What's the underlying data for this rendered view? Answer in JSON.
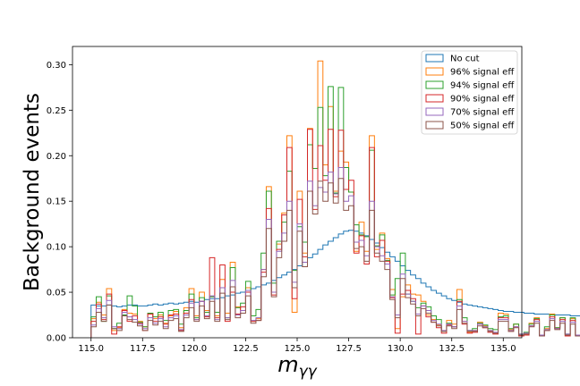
{
  "chart_data": {
    "type": "step-histogram",
    "title": "",
    "xlabel": "m_{γγ}",
    "xlabel_main": "m",
    "xlabel_sub": "γγ",
    "ylabel": "Background events",
    "xlim": [
      114.1,
      135.9
    ],
    "ylim": [
      0,
      0.32
    ],
    "bin_width": 0.25,
    "x_start": 115.0,
    "xticks": [
      115.0,
      117.5,
      120.0,
      122.5,
      125.0,
      127.5,
      130.0,
      132.5,
      135.0
    ],
    "xtick_labels": [
      "115.0",
      "117.5",
      "120.0",
      "122.5",
      "125.0",
      "127.5",
      "130.0",
      "132.5",
      "135.0"
    ],
    "yticks": [
      0.0,
      0.05,
      0.1,
      0.15,
      0.2,
      0.25,
      0.3
    ],
    "ytick_labels": [
      "0.00",
      "0.05",
      "0.10",
      "0.15",
      "0.20",
      "0.25",
      "0.30"
    ],
    "legend_position": "top-right",
    "series": [
      {
        "name": "No cut",
        "color": "#1f77b4",
        "values": [
          0.036,
          0.035,
          0.035,
          0.036,
          0.035,
          0.034,
          0.035,
          0.036,
          0.036,
          0.035,
          0.035,
          0.036,
          0.037,
          0.036,
          0.037,
          0.038,
          0.037,
          0.038,
          0.039,
          0.04,
          0.039,
          0.04,
          0.042,
          0.043,
          0.043,
          0.044,
          0.046,
          0.047,
          0.049,
          0.05,
          0.052,
          0.054,
          0.056,
          0.058,
          0.06,
          0.063,
          0.066,
          0.069,
          0.072,
          0.075,
          0.079,
          0.083,
          0.088,
          0.092,
          0.097,
          0.102,
          0.106,
          0.11,
          0.114,
          0.117,
          0.118,
          0.117,
          0.115,
          0.112,
          0.108,
          0.104,
          0.099,
          0.094,
          0.089,
          0.084,
          0.079,
          0.074,
          0.069,
          0.065,
          0.06,
          0.056,
          0.052,
          0.049,
          0.046,
          0.043,
          0.041,
          0.039,
          0.037,
          0.036,
          0.035,
          0.034,
          0.033,
          0.032,
          0.031,
          0.03,
          0.029,
          0.029,
          0.028,
          0.028,
          0.027,
          0.027,
          0.026,
          0.026,
          0.026,
          0.025,
          0.025,
          0.025,
          0.025,
          0.024,
          0.024,
          0.024,
          0.024,
          0.024,
          0.023,
          0.023
        ]
      },
      {
        "name": "96% signal eff",
        "color": "#ff7f0e",
        "values": [
          0.021,
          0.039,
          0.025,
          0.054,
          0.008,
          0.011,
          0.031,
          0.027,
          0.026,
          0.018,
          0.012,
          0.027,
          0.021,
          0.025,
          0.016,
          0.024,
          0.029,
          0.011,
          0.033,
          0.054,
          0.024,
          0.05,
          0.03,
          0.045,
          0.024,
          0.064,
          0.027,
          0.083,
          0.034,
          0.03,
          0.055,
          0.018,
          0.021,
          0.075,
          0.166,
          0.05,
          0.103,
          0.137,
          0.222,
          0.028,
          0.161,
          0.093,
          0.23,
          0.186,
          0.304,
          0.19,
          0.254,
          0.161,
          0.205,
          0.193,
          0.16,
          0.095,
          0.127,
          0.095,
          0.222,
          0.097,
          0.115,
          0.087,
          0.053,
          0.01,
          0.045,
          0.058,
          0.048,
          0.047,
          0.04,
          0.025,
          0.02,
          0.014,
          0.007,
          0.019,
          0.015,
          0.053,
          0.018,
          0.006,
          0.008,
          0.017,
          0.013,
          0.008,
          0.005,
          0.027,
          0.026,
          0.009,
          0.015,
          0.003,
          0.004,
          0.016,
          0.022,
          0.002,
          0.01,
          0.026,
          0.011,
          0.022,
          0.002,
          0.021,
          0.003,
          0.004,
          0.002,
          0.003,
          0.004,
          0.002
        ]
      },
      {
        "name": "94% signal eff",
        "color": "#2ca02c",
        "values": [
          0.023,
          0.045,
          0.018,
          0.046,
          0.01,
          0.016,
          0.025,
          0.046,
          0.035,
          0.017,
          0.012,
          0.027,
          0.023,
          0.028,
          0.019,
          0.03,
          0.031,
          0.015,
          0.03,
          0.048,
          0.022,
          0.044,
          0.028,
          0.045,
          0.028,
          0.055,
          0.022,
          0.077,
          0.033,
          0.038,
          0.062,
          0.024,
          0.031,
          0.093,
          0.161,
          0.06,
          0.106,
          0.127,
          0.183,
          0.074,
          0.122,
          0.105,
          0.212,
          0.186,
          0.253,
          0.178,
          0.276,
          0.159,
          0.275,
          0.187,
          0.16,
          0.124,
          0.113,
          0.111,
          0.206,
          0.101,
          0.113,
          0.085,
          0.047,
          0.065,
          0.093,
          0.048,
          0.04,
          0.033,
          0.038,
          0.034,
          0.024,
          0.02,
          0.007,
          0.016,
          0.012,
          0.042,
          0.022,
          0.008,
          0.01,
          0.016,
          0.014,
          0.01,
          0.009,
          0.023,
          0.024,
          0.01,
          0.015,
          0.004,
          0.006,
          0.015,
          0.021,
          0.003,
          0.012,
          0.025,
          0.011,
          0.022,
          0.004,
          0.022,
          0.003,
          0.005,
          0.003,
          0.003,
          0.004,
          0.003
        ]
      },
      {
        "name": "90% signal eff",
        "color": "#d62728",
        "values": [
          0.018,
          0.037,
          0.02,
          0.048,
          0.004,
          0.012,
          0.03,
          0.018,
          0.024,
          0.016,
          0.008,
          0.026,
          0.018,
          0.023,
          0.015,
          0.025,
          0.026,
          0.008,
          0.027,
          0.042,
          0.02,
          0.04,
          0.023,
          0.088,
          0.022,
          0.08,
          0.018,
          0.05,
          0.026,
          0.034,
          0.05,
          0.018,
          0.019,
          0.072,
          0.142,
          0.047,
          0.097,
          0.135,
          0.209,
          0.043,
          0.152,
          0.089,
          0.229,
          0.141,
          0.211,
          0.173,
          0.229,
          0.155,
          0.228,
          0.163,
          0.173,
          0.093,
          0.112,
          0.081,
          0.209,
          0.089,
          0.107,
          0.084,
          0.044,
          0.005,
          0.048,
          0.052,
          0.043,
          0.004,
          0.035,
          0.023,
          0.017,
          0.011,
          0.005,
          0.014,
          0.012,
          0.04,
          0.015,
          0.005,
          0.006,
          0.015,
          0.011,
          0.006,
          0.004,
          0.022,
          0.022,
          0.007,
          0.012,
          0.002,
          0.003,
          0.013,
          0.02,
          0.002,
          0.008,
          0.023,
          0.01,
          0.02,
          0.002,
          0.019,
          0.002,
          0.003,
          0.001,
          0.002,
          0.003,
          0.002
        ]
      },
      {
        "name": "70% signal eff",
        "color": "#9467bd",
        "values": [
          0.014,
          0.032,
          0.022,
          0.041,
          0.012,
          0.01,
          0.028,
          0.023,
          0.02,
          0.015,
          0.01,
          0.022,
          0.016,
          0.021,
          0.012,
          0.022,
          0.024,
          0.009,
          0.025,
          0.038,
          0.02,
          0.04,
          0.024,
          0.046,
          0.02,
          0.055,
          0.022,
          0.063,
          0.025,
          0.03,
          0.052,
          0.019,
          0.022,
          0.075,
          0.13,
          0.05,
          0.095,
          0.115,
          0.15,
          0.061,
          0.125,
          0.083,
          0.172,
          0.145,
          0.165,
          0.16,
          0.182,
          0.158,
          0.187,
          0.15,
          0.156,
          0.105,
          0.107,
          0.09,
          0.15,
          0.1,
          0.09,
          0.081,
          0.045,
          0.025,
          0.07,
          0.048,
          0.04,
          0.026,
          0.035,
          0.03,
          0.019,
          0.015,
          0.008,
          0.015,
          0.012,
          0.035,
          0.018,
          0.008,
          0.008,
          0.015,
          0.012,
          0.008,
          0.006,
          0.02,
          0.02,
          0.008,
          0.012,
          0.004,
          0.005,
          0.013,
          0.018,
          0.003,
          0.009,
          0.021,
          0.01,
          0.018,
          0.004,
          0.017,
          0.003,
          0.004,
          0.002,
          0.003,
          0.003,
          0.002
        ]
      },
      {
        "name": "50% signal eff",
        "color": "#8c564b",
        "values": [
          0.012,
          0.028,
          0.018,
          0.036,
          0.01,
          0.008,
          0.024,
          0.02,
          0.017,
          0.013,
          0.008,
          0.019,
          0.014,
          0.018,
          0.01,
          0.019,
          0.021,
          0.007,
          0.022,
          0.033,
          0.018,
          0.035,
          0.021,
          0.04,
          0.018,
          0.049,
          0.02,
          0.056,
          0.022,
          0.027,
          0.046,
          0.016,
          0.019,
          0.067,
          0.12,
          0.045,
          0.088,
          0.106,
          0.14,
          0.055,
          0.117,
          0.078,
          0.161,
          0.136,
          0.172,
          0.15,
          0.17,
          0.148,
          0.175,
          0.14,
          0.145,
          0.098,
          0.1,
          0.084,
          0.14,
          0.093,
          0.084,
          0.075,
          0.042,
          0.022,
          0.065,
          0.044,
          0.037,
          0.024,
          0.032,
          0.027,
          0.017,
          0.013,
          0.007,
          0.013,
          0.01,
          0.031,
          0.016,
          0.007,
          0.007,
          0.013,
          0.011,
          0.007,
          0.005,
          0.018,
          0.018,
          0.007,
          0.011,
          0.003,
          0.004,
          0.012,
          0.016,
          0.002,
          0.008,
          0.019,
          0.009,
          0.016,
          0.003,
          0.015,
          0.002,
          0.003,
          0.002,
          0.002,
          0.003,
          0.002
        ]
      }
    ]
  }
}
